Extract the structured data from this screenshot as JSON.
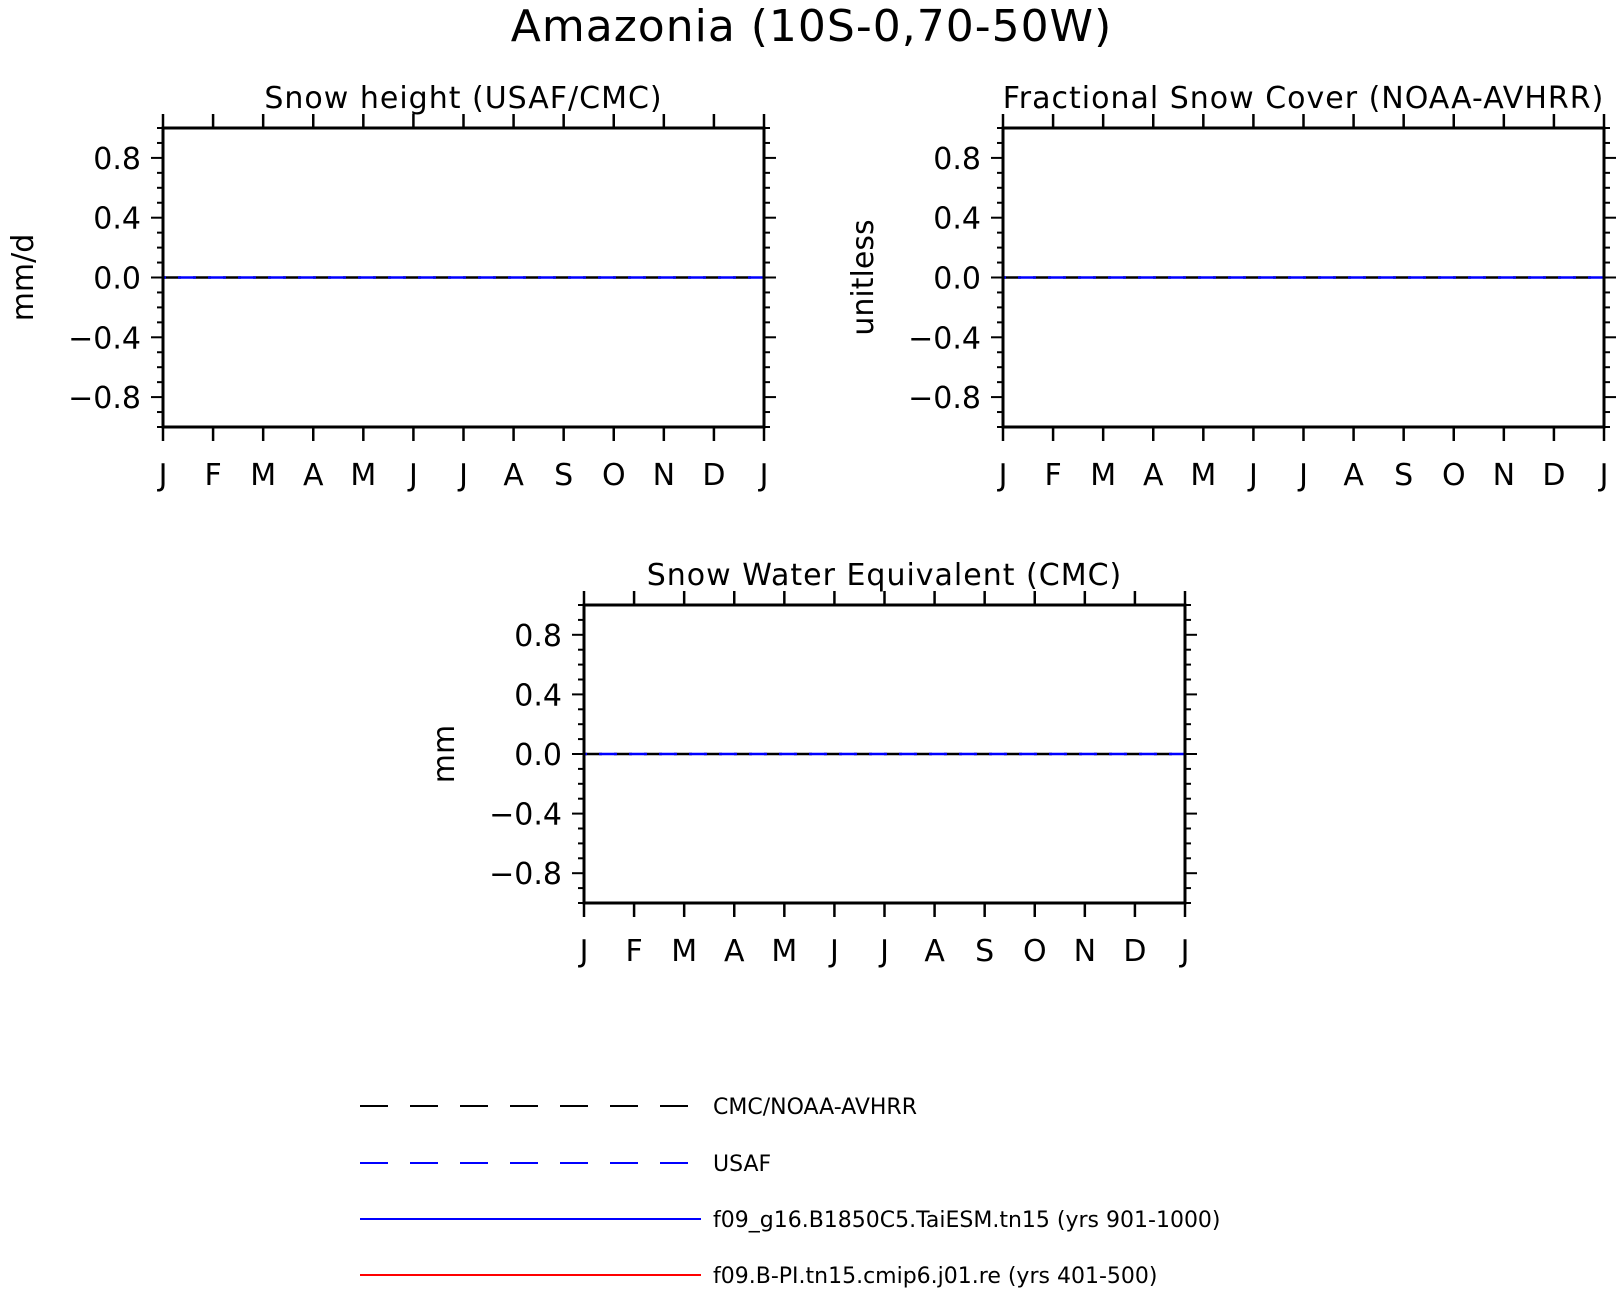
{
  "figure": {
    "title": "Amazonia (10S-0,70-50W)"
  },
  "chart_data": [
    {
      "type": "line",
      "title": "Snow height (USAF/CMC)",
      "ylabel": "mm/d",
      "xlabel": "",
      "x_tick_labels": [
        "J",
        "F",
        "M",
        "A",
        "M",
        "J",
        "J",
        "A",
        "S",
        "O",
        "N",
        "D",
        "J"
      ],
      "y_ticks": [
        0.8,
        0.4,
        0.0,
        -0.4,
        -0.8
      ],
      "y_tick_labels": [
        "0.8",
        "0.4",
        "0.0",
        "−0.4",
        "−0.8"
      ],
      "ylim": [
        -1.0,
        1.0
      ],
      "xlim": [
        0,
        12
      ],
      "series": [
        {
          "name": "CMC/NOAA-AVHRR",
          "color": "#000000",
          "dash": "dashed",
          "x": [
            0,
            1,
            2,
            3,
            4,
            5,
            6,
            7,
            8,
            9,
            10,
            11,
            12
          ],
          "values": [
            0,
            0,
            0,
            0,
            0,
            0,
            0,
            0,
            0,
            0,
            0,
            0,
            0
          ]
        },
        {
          "name": "USAF",
          "color": "#0000ff",
          "dash": "dashed",
          "x": [
            0,
            1,
            2,
            3,
            4,
            5,
            6,
            7,
            8,
            9,
            10,
            11,
            12
          ],
          "values": [
            0,
            0,
            0,
            0,
            0,
            0,
            0,
            0,
            0,
            0,
            0,
            0,
            0
          ]
        }
      ]
    },
    {
      "type": "line",
      "title": "Fractional Snow Cover (NOAA-AVHRR)",
      "ylabel": "unitless",
      "xlabel": "",
      "x_tick_labels": [
        "J",
        "F",
        "M",
        "A",
        "M",
        "J",
        "J",
        "A",
        "S",
        "O",
        "N",
        "D",
        "J"
      ],
      "y_ticks": [
        0.8,
        0.4,
        0.0,
        -0.4,
        -0.8
      ],
      "y_tick_labels": [
        "0.8",
        "0.4",
        "0.0",
        "−0.4",
        "−0.8"
      ],
      "ylim": [
        -1.0,
        1.0
      ],
      "xlim": [
        0,
        12
      ],
      "series": [
        {
          "name": "CMC/NOAA-AVHRR",
          "color": "#000000",
          "dash": "dashed",
          "x": [
            0,
            1,
            2,
            3,
            4,
            5,
            6,
            7,
            8,
            9,
            10,
            11,
            12
          ],
          "values": [
            0,
            0,
            0,
            0,
            0,
            0,
            0,
            0,
            0,
            0,
            0,
            0,
            0
          ]
        },
        {
          "name": "USAF",
          "color": "#0000ff",
          "dash": "dashed",
          "x": [
            0,
            1,
            2,
            3,
            4,
            5,
            6,
            7,
            8,
            9,
            10,
            11,
            12
          ],
          "values": [
            0,
            0,
            0,
            0,
            0,
            0,
            0,
            0,
            0,
            0,
            0,
            0,
            0
          ]
        }
      ]
    },
    {
      "type": "line",
      "title": "Snow Water Equivalent (CMC)",
      "ylabel": "mm",
      "xlabel": "",
      "x_tick_labels": [
        "J",
        "F",
        "M",
        "A",
        "M",
        "J",
        "J",
        "A",
        "S",
        "O",
        "N",
        "D",
        "J"
      ],
      "y_ticks": [
        0.8,
        0.4,
        0.0,
        -0.4,
        -0.8
      ],
      "y_tick_labels": [
        "0.8",
        "0.4",
        "0.0",
        "−0.4",
        "−0.8"
      ],
      "ylim": [
        -1.0,
        1.0
      ],
      "xlim": [
        0,
        12
      ],
      "series": [
        {
          "name": "CMC/NOAA-AVHRR",
          "color": "#000000",
          "dash": "dashed",
          "x": [
            0,
            1,
            2,
            3,
            4,
            5,
            6,
            7,
            8,
            9,
            10,
            11,
            12
          ],
          "values": [
            0,
            0,
            0,
            0,
            0,
            0,
            0,
            0,
            0,
            0,
            0,
            0,
            0
          ]
        },
        {
          "name": "USAF",
          "color": "#0000ff",
          "dash": "dashed",
          "x": [
            0,
            1,
            2,
            3,
            4,
            5,
            6,
            7,
            8,
            9,
            10,
            11,
            12
          ],
          "values": [
            0,
            0,
            0,
            0,
            0,
            0,
            0,
            0,
            0,
            0,
            0,
            0,
            0
          ]
        }
      ]
    }
  ],
  "legend": {
    "entries": [
      {
        "label": "CMC/NOAA-AVHRR",
        "color": "#000000",
        "dash": "dashed"
      },
      {
        "label": "USAF",
        "color": "#0000ff",
        "dash": "dashed"
      },
      {
        "label": "f09_g16.B1850C5.TaiESM.tn15 (yrs 901-1000)",
        "color": "#0000ff",
        "dash": "solid"
      },
      {
        "label": "f09.B-PI.tn15.cmip6.j01.re (yrs 401-500)",
        "color": "#ff0000",
        "dash": "solid"
      }
    ]
  }
}
